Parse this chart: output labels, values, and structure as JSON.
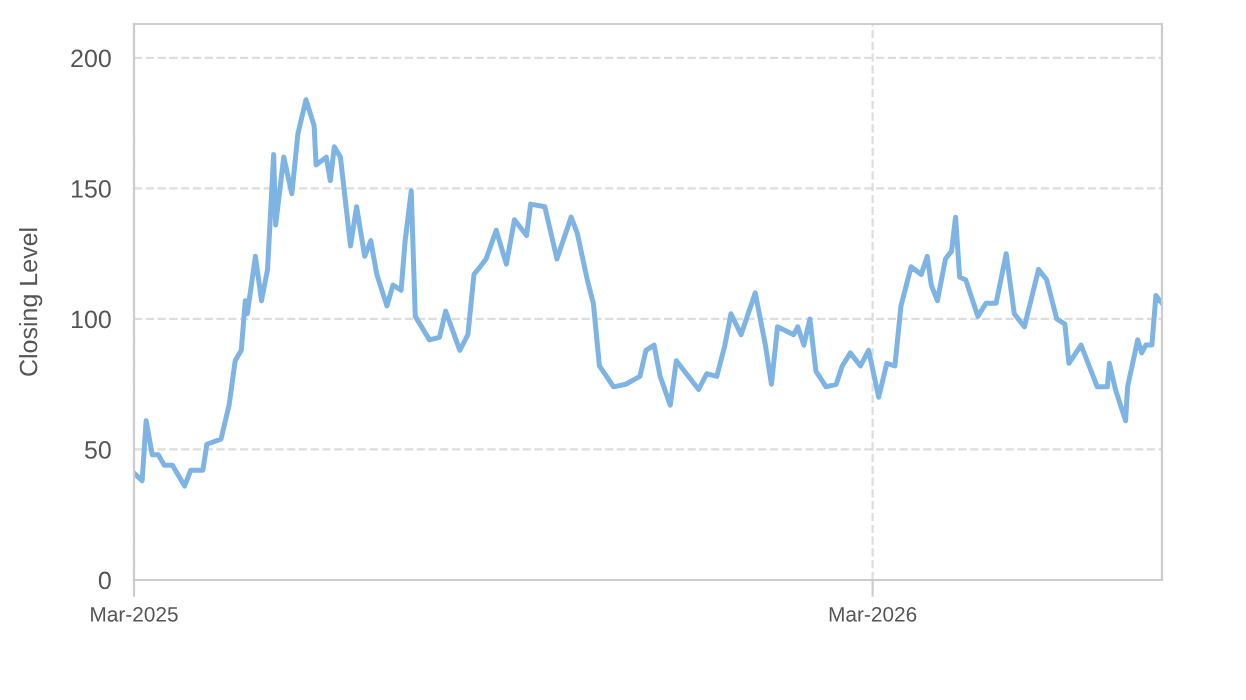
{
  "chart_data": {
    "type": "line",
    "ylabel": "Closing Level",
    "x": [
      "2025-03-01",
      "2025-03-05",
      "2025-03-07",
      "2025-03-10",
      "2025-03-13",
      "2025-03-16",
      "2025-03-20",
      "2025-03-26",
      "2025-03-29",
      "2025-04-04",
      "2025-04-06",
      "2025-04-13",
      "2025-04-17",
      "2025-04-20",
      "2025-04-23",
      "2025-04-25",
      "2025-04-26",
      "2025-04-30",
      "2025-05-03",
      "2025-05-06",
      "2025-05-09",
      "2025-05-10",
      "2025-05-14",
      "2025-05-18",
      "2025-05-21",
      "2025-05-25",
      "2025-05-29",
      "2025-05-30",
      "2025-06-04",
      "2025-06-06",
      "2025-06-08",
      "2025-06-11",
      "2025-06-16",
      "2025-06-19",
      "2025-06-23",
      "2025-06-26",
      "2025-06-29",
      "2025-07-04",
      "2025-07-07",
      "2025-07-11",
      "2025-07-13",
      "2025-07-16",
      "2025-07-18",
      "2025-07-25",
      "2025-07-30",
      "2025-08-02",
      "2025-08-09",
      "2025-08-13",
      "2025-08-16",
      "2025-08-22",
      "2025-08-27",
      "2025-09-01",
      "2025-09-05",
      "2025-09-11",
      "2025-09-13",
      "2025-09-20",
      "2025-09-26",
      "2025-10-03",
      "2025-10-06",
      "2025-10-11",
      "2025-10-14",
      "2025-10-17",
      "2025-10-24",
      "2025-10-30",
      "2025-11-06",
      "2025-11-09",
      "2025-11-13",
      "2025-11-16",
      "2025-11-21",
      "2025-11-24",
      "2025-12-01",
      "2025-12-05",
      "2025-12-09",
      "2025-12-14",
      "2025-12-18",
      "2025-12-21",
      "2025-12-26",
      "2026-01-02",
      "2026-01-07",
      "2026-01-10",
      "2026-01-13",
      "2026-01-21",
      "2026-01-23",
      "2026-01-26",
      "2026-01-29",
      "2026-02-01",
      "2026-02-06",
      "2026-02-11",
      "2026-02-14",
      "2026-02-18",
      "2026-02-23",
      "2026-02-27",
      "2026-03-04",
      "2026-03-08",
      "2026-03-12",
      "2026-03-15",
      "2026-03-20",
      "2026-03-25",
      "2026-03-28",
      "2026-03-30",
      "2026-04-02",
      "2026-04-06",
      "2026-04-09",
      "2026-04-11",
      "2026-04-13",
      "2026-04-16",
      "2026-04-22",
      "2026-04-26",
      "2026-05-01",
      "2026-05-06",
      "2026-05-10",
      "2026-05-15",
      "2026-05-22",
      "2026-05-26",
      "2026-05-31",
      "2026-06-04",
      "2026-06-06",
      "2026-06-12",
      "2026-06-20",
      "2026-06-25",
      "2026-06-26",
      "2026-06-29",
      "2026-07-04",
      "2026-07-05",
      "2026-07-10",
      "2026-07-12",
      "2026-07-14",
      "2026-07-17",
      "2026-07-19",
      "2026-07-22"
    ],
    "series": [
      {
        "color": "#7eb4e3",
        "values": [
          41,
          38,
          61,
          48,
          48,
          44,
          44,
          36,
          42,
          42,
          52,
          54,
          67,
          84,
          88,
          107,
          102,
          124,
          107,
          119,
          163,
          136,
          162,
          148,
          171,
          184,
          174,
          159,
          162,
          153,
          166,
          162,
          128,
          143,
          124,
          130,
          117,
          105,
          113,
          111,
          130,
          149,
          101,
          92,
          93,
          103,
          88,
          94,
          117,
          123,
          134,
          121,
          138,
          132,
          144,
          143,
          123,
          139,
          133,
          115,
          106,
          82,
          74,
          75,
          78,
          88,
          90,
          78,
          67,
          84,
          77,
          73,
          79,
          78,
          90,
          102,
          94,
          110,
          90,
          75,
          97,
          94,
          97,
          90,
          100,
          80,
          74,
          75,
          82,
          87,
          82,
          88,
          70,
          83,
          82,
          105,
          120,
          117,
          124,
          113,
          107,
          123,
          126,
          139,
          116,
          115,
          101,
          106,
          106,
          125,
          102,
          97,
          119,
          115,
          100,
          98,
          83,
          90,
          74,
          74,
          83,
          73,
          61,
          74,
          92,
          87,
          90,
          90,
          109,
          106
        ]
      }
    ],
    "xlim": [
      "2025-03-01",
      "2026-07-22"
    ],
    "xticks": [
      {
        "value": "2025-03-01",
        "label": "Mar-2025"
      },
      {
        "value": "2026-03-01",
        "label": "Mar-2026"
      }
    ],
    "ylim": [
      0,
      213
    ],
    "yticks": [
      0,
      50,
      100,
      150,
      200
    ],
    "grid": true,
    "marker": "none",
    "line_style": "solid"
  }
}
